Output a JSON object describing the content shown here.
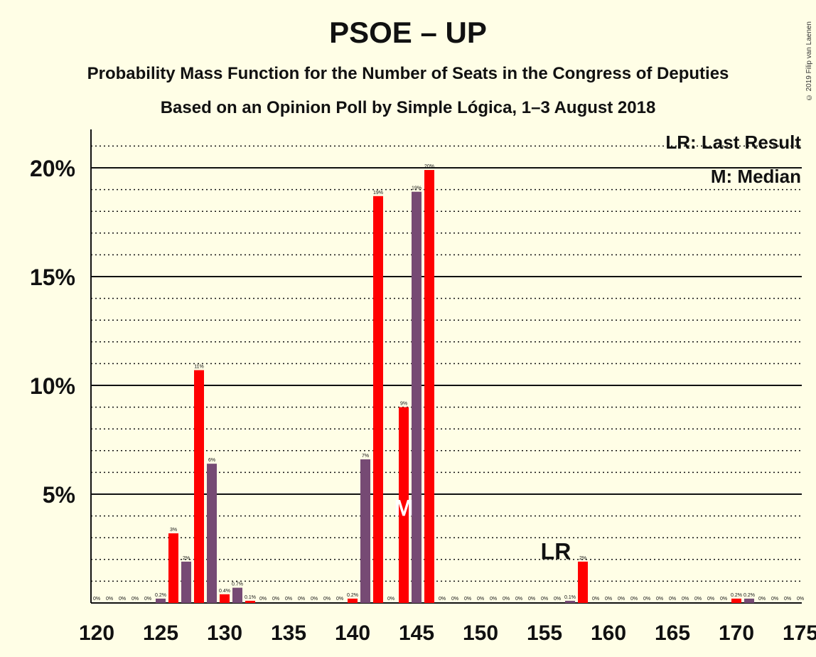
{
  "title": "PSOE – UP",
  "subtitle_1": "Probability Mass Function for the Number of Seats in the Congress of Deputies",
  "subtitle_2": "Based on an Opinion Poll by Simple Lógica, 1–3 August 2018",
  "copyright": "© 2019 Filip van Laenen",
  "legend": {
    "last_result": "LR: Last Result",
    "median": "M: Median"
  },
  "colors": {
    "background": "#FFFEE6",
    "bar_red": "#FF0000",
    "bar_purple": "#764A74"
  },
  "chart_data": {
    "type": "bar",
    "xlabel": "",
    "ylabel": "",
    "xlim": [
      120,
      175
    ],
    "ylim": [
      0,
      21.8
    ],
    "x_ticks": [
      "120",
      "125",
      "130",
      "135",
      "140",
      "145",
      "150",
      "155",
      "160",
      "165",
      "170",
      "175"
    ],
    "y_ticks": [
      {
        "value": 5,
        "label": "5%"
      },
      {
        "value": 10,
        "label": "10%"
      },
      {
        "value": 15,
        "label": "15%"
      },
      {
        "value": 20,
        "label": "20%"
      }
    ],
    "grid": "solid major lines every 5%, dotted minor lines every 1%",
    "bars": [
      {
        "seats": 120,
        "value": 0,
        "label": "0%",
        "color": "red"
      },
      {
        "seats": 121,
        "value": 0,
        "label": "0%",
        "color": "purple"
      },
      {
        "seats": 122,
        "value": 0,
        "label": "0%",
        "color": "red"
      },
      {
        "seats": 123,
        "value": 0,
        "label": "0%",
        "color": "purple"
      },
      {
        "seats": 124,
        "value": 0,
        "label": "0%",
        "color": "red"
      },
      {
        "seats": 125,
        "value": 0.2,
        "label": "0.2%",
        "color": "purple"
      },
      {
        "seats": 126,
        "value": 3.2,
        "label": "3%",
        "color": "red"
      },
      {
        "seats": 127,
        "value": 1.9,
        "label": "2%",
        "color": "purple"
      },
      {
        "seats": 128,
        "value": 10.7,
        "label": "11%",
        "color": "red"
      },
      {
        "seats": 129,
        "value": 6.4,
        "label": "6%",
        "color": "purple"
      },
      {
        "seats": 130,
        "value": 0.4,
        "label": "0.4%",
        "color": "red"
      },
      {
        "seats": 131,
        "value": 0.7,
        "label": "0.7%",
        "color": "purple"
      },
      {
        "seats": 132,
        "value": 0.1,
        "label": "0.1%",
        "color": "red"
      },
      {
        "seats": 133,
        "value": 0,
        "label": "0%",
        "color": "purple"
      },
      {
        "seats": 134,
        "value": 0,
        "label": "0%",
        "color": "red"
      },
      {
        "seats": 135,
        "value": 0,
        "label": "0%",
        "color": "purple"
      },
      {
        "seats": 136,
        "value": 0,
        "label": "0%",
        "color": "red"
      },
      {
        "seats": 137,
        "value": 0,
        "label": "0%",
        "color": "purple"
      },
      {
        "seats": 138,
        "value": 0,
        "label": "0%",
        "color": "red"
      },
      {
        "seats": 139,
        "value": 0,
        "label": "0%",
        "color": "purple"
      },
      {
        "seats": 140,
        "value": 0.2,
        "label": "0.2%",
        "color": "red"
      },
      {
        "seats": 141,
        "value": 6.6,
        "label": "7%",
        "color": "purple"
      },
      {
        "seats": 142,
        "value": 18.7,
        "label": "19%",
        "color": "red"
      },
      {
        "seats": 143,
        "value": 0,
        "label": "0%",
        "color": "purple"
      },
      {
        "seats": 144,
        "value": 9.0,
        "label": "9%",
        "color": "red"
      },
      {
        "seats": 145,
        "value": 18.9,
        "label": "19%",
        "color": "purple"
      },
      {
        "seats": 146,
        "value": 19.9,
        "label": "20%",
        "color": "red"
      },
      {
        "seats": 147,
        "value": 0,
        "label": "0%",
        "color": "purple"
      },
      {
        "seats": 148,
        "value": 0,
        "label": "0%",
        "color": "red"
      },
      {
        "seats": 149,
        "value": 0,
        "label": "0%",
        "color": "purple"
      },
      {
        "seats": 150,
        "value": 0,
        "label": "0%",
        "color": "red"
      },
      {
        "seats": 151,
        "value": 0,
        "label": "0%",
        "color": "purple"
      },
      {
        "seats": 152,
        "value": 0,
        "label": "0%",
        "color": "red"
      },
      {
        "seats": 153,
        "value": 0,
        "label": "0%",
        "color": "purple"
      },
      {
        "seats": 154,
        "value": 0,
        "label": "0%",
        "color": "red"
      },
      {
        "seats": 155,
        "value": 0,
        "label": "0%",
        "color": "purple"
      },
      {
        "seats": 156,
        "value": 0,
        "label": "0%",
        "color": "red"
      },
      {
        "seats": 157,
        "value": 0.1,
        "label": "0.1%",
        "color": "purple"
      },
      {
        "seats": 158,
        "value": 1.9,
        "label": "2%",
        "color": "red"
      },
      {
        "seats": 159,
        "value": 0,
        "label": "0%",
        "color": "purple"
      },
      {
        "seats": 160,
        "value": 0,
        "label": "0%",
        "color": "red"
      },
      {
        "seats": 161,
        "value": 0,
        "label": "0%",
        "color": "purple"
      },
      {
        "seats": 162,
        "value": 0,
        "label": "0%",
        "color": "red"
      },
      {
        "seats": 163,
        "value": 0,
        "label": "0%",
        "color": "purple"
      },
      {
        "seats": 164,
        "value": 0,
        "label": "0%",
        "color": "red"
      },
      {
        "seats": 165,
        "value": 0,
        "label": "0%",
        "color": "purple"
      },
      {
        "seats": 166,
        "value": 0,
        "label": "0%",
        "color": "red"
      },
      {
        "seats": 167,
        "value": 0,
        "label": "0%",
        "color": "purple"
      },
      {
        "seats": 168,
        "value": 0,
        "label": "0%",
        "color": "red"
      },
      {
        "seats": 169,
        "value": 0,
        "label": "0%",
        "color": "purple"
      },
      {
        "seats": 170,
        "value": 0.2,
        "label": "0.2%",
        "color": "red"
      },
      {
        "seats": 171,
        "value": 0.2,
        "label": "0.2%",
        "color": "purple"
      },
      {
        "seats": 172,
        "value": 0,
        "label": "0%",
        "color": "red"
      },
      {
        "seats": 173,
        "value": 0,
        "label": "0%",
        "color": "purple"
      },
      {
        "seats": 174,
        "value": 0,
        "label": "0%",
        "color": "red"
      },
      {
        "seats": 175,
        "value": 0,
        "label": "0%",
        "color": "purple"
      }
    ],
    "markers": [
      {
        "text": "M",
        "seats": 144,
        "value": 4.4,
        "color": "#FFFFFF"
      },
      {
        "text": "LR",
        "seats": 156,
        "value": 2.4,
        "color": "#111111"
      }
    ]
  }
}
